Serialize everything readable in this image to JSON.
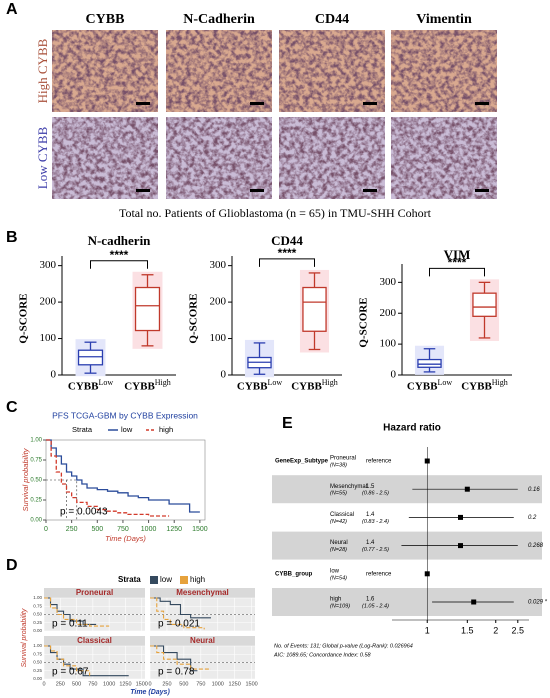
{
  "panel_labels": [
    "A",
    "B",
    "C",
    "D",
    "E"
  ],
  "panel_a": {
    "columns": [
      "CYBB",
      "N-Cadherin",
      "CD44",
      "Vimentin"
    ],
    "rows": [
      "High CYBB",
      "Low CYBB"
    ],
    "row_colors": [
      "#a8503a",
      "#3a3aa8"
    ],
    "caption": "Total no. Patients of Glioblastoma  (n = 65) in TMU-SHH Cohort"
  },
  "chart_data": [
    {
      "type": "box",
      "title": "N-cadherin",
      "ylabel": "Q-SCORE",
      "categories": [
        "CYBB",
        "CYBB"
      ],
      "category_superscripts": [
        "Low",
        "High"
      ],
      "colors": [
        "#2b3fb0",
        "#c0392b"
      ],
      "boxes": [
        {
          "min": 5,
          "q1": 28,
          "median": 50,
          "q3": 68,
          "max": 90
        },
        {
          "min": 80,
          "q1": 122,
          "median": 190,
          "q3": 240,
          "max": 275
        }
      ],
      "significance": "****",
      "ylim": [
        0,
        310
      ],
      "yticks": [
        0,
        100,
        200,
        300
      ]
    },
    {
      "type": "box",
      "title": "CD44",
      "ylabel": "Q-SCORE",
      "categories": [
        "CYBB",
        "CYBB"
      ],
      "category_superscripts": [
        "Low",
        "High"
      ],
      "colors": [
        "#2b3fb0",
        "#c0392b"
      ],
      "boxes": [
        {
          "min": 2,
          "q1": 20,
          "median": 35,
          "q3": 48,
          "max": 88
        },
        {
          "min": 70,
          "q1": 120,
          "median": 200,
          "q3": 240,
          "max": 280
        }
      ],
      "significance": "****",
      "ylim": [
        0,
        310
      ],
      "yticks": [
        0,
        100,
        200,
        300
      ]
    },
    {
      "type": "box",
      "title": "VIM",
      "ylabel": "Q-SCORE",
      "categories": [
        "CYBB",
        "CYBB"
      ],
      "category_superscripts": [
        "Low",
        "High"
      ],
      "colors": [
        "#2b3fb0",
        "#c0392b"
      ],
      "boxes": [
        {
          "min": 10,
          "q1": 25,
          "median": 35,
          "q3": 50,
          "max": 85
        },
        {
          "min": 120,
          "q1": 190,
          "median": 220,
          "q3": 265,
          "max": 300
        }
      ],
      "significance": "****",
      "ylim": [
        0,
        340
      ],
      "yticks": [
        0,
        100,
        200,
        300
      ]
    },
    {
      "type": "survival",
      "title": "PFS TCGA-GBM by CYBB Expression",
      "legend_title": "Strata",
      "xlabel": "Time (Days)",
      "ylabel": "Survival probability",
      "annotation": "p = 0.0043",
      "xlim": [
        0,
        1550
      ],
      "xticks": [
        0,
        250,
        500,
        750,
        1000,
        1250,
        1500
      ],
      "ylim": [
        0,
        1
      ],
      "yticks": [
        {
          "value": 0,
          "label": "0.00"
        },
        {
          "value": 0.25,
          "label": "0.25"
        },
        {
          "value": 0.5,
          "label": "0.50"
        },
        {
          "value": 0.75,
          "label": "0.75"
        },
        {
          "value": 1,
          "label": "1.00"
        }
      ],
      "series": [
        {
          "name": "low",
          "color": "#2b4c9b",
          "dash": false,
          "x": [
            0,
            50,
            100,
            150,
            200,
            250,
            300,
            350,
            400,
            500,
            600,
            700,
            800,
            900,
            1000,
            1200,
            1400,
            1500
          ],
          "values": [
            1,
            0.9,
            0.8,
            0.7,
            0.6,
            0.55,
            0.5,
            0.45,
            0.4,
            0.38,
            0.36,
            0.34,
            0.3,
            0.28,
            0.25,
            0.2,
            0.1,
            0.1
          ]
        },
        {
          "name": "high",
          "color": "#d23a2a",
          "dash": true,
          "x": [
            0,
            50,
            100,
            150,
            200,
            250,
            300,
            400,
            500,
            600,
            700,
            800,
            1000,
            1200
          ],
          "values": [
            1,
            0.8,
            0.6,
            0.45,
            0.35,
            0.28,
            0.22,
            0.17,
            0.13,
            0.11,
            0.09,
            0.07,
            0.05,
            0.05
          ]
        }
      ]
    },
    {
      "type": "survival_facets",
      "legend_title": "Strata",
      "xlabel": "Time (Days)",
      "ylabel": "Survival probability",
      "series": [
        {
          "name": "low",
          "color": "#34495e"
        },
        {
          "name": "high",
          "color": "#e6a23c"
        }
      ],
      "xlim": [
        0,
        1550
      ],
      "xticks": [
        0,
        250,
        500,
        750,
        1000,
        1250,
        1500
      ],
      "ylim": [
        0,
        1
      ],
      "yticks": [
        {
          "value": 0,
          "label": "0.00"
        },
        {
          "value": 0.25,
          "label": "0.25"
        },
        {
          "value": 0.5,
          "label": "0.50"
        },
        {
          "value": 0.75,
          "label": "0.75"
        },
        {
          "value": 1,
          "label": "1.00"
        }
      ],
      "facets": [
        {
          "title": "Proneural",
          "annotation": "p = 0.11",
          "curves": [
            {
              "x": [
                0,
                100,
                200,
                300,
                400,
                600,
                800
              ],
              "values": [
                1,
                0.8,
                0.6,
                0.5,
                0.3,
                0.2,
                0.2
              ]
            },
            {
              "x": [
                0,
                100,
                200,
                300,
                500,
                700,
                1000
              ],
              "values": [
                1,
                0.7,
                0.5,
                0.35,
                0.2,
                0.15,
                0.15
              ]
            }
          ]
        },
        {
          "title": "Mesenchymal",
          "annotation": "p = 0.021",
          "curves": [
            {
              "x": [
                0,
                150,
                300,
                450,
                600,
                900
              ],
              "values": [
                1,
                0.9,
                0.8,
                0.5,
                0.4,
                0.4
              ]
            },
            {
              "x": [
                0,
                100,
                200,
                300,
                500,
                800
              ],
              "values": [
                1,
                0.6,
                0.35,
                0.2,
                0.1,
                0.05
              ]
            }
          ]
        },
        {
          "title": "Classical",
          "annotation": "p = 0.67",
          "curves": [
            {
              "x": [
                0,
                100,
                200,
                300,
                400,
                600,
                1300
              ],
              "values": [
                1,
                0.8,
                0.6,
                0.45,
                0.3,
                0.1,
                0.1
              ]
            },
            {
              "x": [
                0,
                100,
                200,
                300,
                500,
                700
              ],
              "values": [
                1,
                0.85,
                0.6,
                0.4,
                0.25,
                0.1
              ]
            }
          ]
        },
        {
          "title": "Neural",
          "annotation": "p = 0.78",
          "curves": [
            {
              "x": [
                0,
                200,
                400,
                600,
                700
              ],
              "values": [
                1,
                0.8,
                0.6,
                0.25,
                0.25
              ]
            },
            {
              "x": [
                0,
                100,
                200,
                400,
                600,
                900
              ],
              "values": [
                1,
                0.8,
                0.6,
                0.45,
                0.3,
                0.3
              ]
            }
          ]
        }
      ]
    },
    {
      "type": "forest",
      "title": "Hazard ratio",
      "log_scale": true,
      "xlim": [
        0.7,
        2.8
      ],
      "xticks": [
        1,
        1.5,
        2,
        2.5
      ],
      "rows": [
        {
          "group": "GeneExp_Subtype",
          "level": "Proneural",
          "n": "(N=38)",
          "hr": 1,
          "hr_label": "reference"
        },
        {
          "level": "Mesenchymal",
          "n": "(N=55)",
          "hr": 1.5,
          "ci": [
            0.86,
            2.5
          ],
          "ci_label": "(0.86 - 2.5)",
          "p_label": "0.16"
        },
        {
          "level": "Classical",
          "n": "(N=42)",
          "hr": 1.4,
          "ci": [
            0.83,
            2.4
          ],
          "ci_label": "(0.83 - 2.4)",
          "p_label": "0.2"
        },
        {
          "level": "Neural",
          "n": "(N=28)",
          "hr": 1.4,
          "ci": [
            0.77,
            2.5
          ],
          "ci_label": "(0.77 - 2.5)",
          "p_label": "0.268"
        },
        {
          "group": "CYBB_group",
          "level": "low",
          "n": "(N=54)",
          "hr": 1,
          "hr_label": "reference"
        },
        {
          "level": "high",
          "n": "(N=109)",
          "hr": 1.6,
          "ci": [
            1.05,
            2.4
          ],
          "ci_label": "(1.05 - 2.4)",
          "p_label": "0.029 *"
        }
      ],
      "footer": [
        "No. of Events: 131; Global p-value (Log-Rank): 0.026964",
        "AIC: 1089.65; Concordance Index: 0.58"
      ]
    }
  ]
}
